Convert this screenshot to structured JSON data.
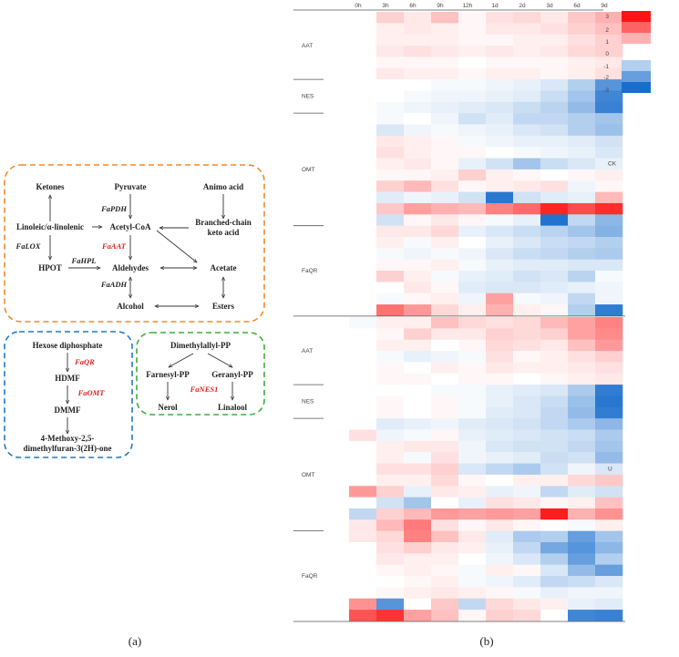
{
  "panel_a": {
    "caption": "(a)",
    "box_orange": {
      "ketones": "Ketones",
      "pyruvate": "Pyruvate",
      "amino_acid": "Animo acid",
      "linoleic": "Linoleic/α-linolenic",
      "acetyl_coa": "Acetyl-CoA",
      "branched_chain_1": "Branched-chain",
      "branched_chain_2": "keto acid",
      "hpot": "HPOT",
      "aldehydes": "Aldehydes",
      "acetate": "Acetate",
      "alcohol": "Alcohol",
      "esters": "Esters",
      "gene_pdh": "FaPDH",
      "gene_lox": "FaLOX",
      "gene_aat": "FaAAT",
      "gene_hpl": "FaHPL",
      "gene_adh": "FaADH"
    },
    "box_blue": {
      "hexose": "Hexose diphosphate",
      "hdmf": "HDMF",
      "dmmf": "DMMF",
      "product_1": "4-Methoxy-2,5-",
      "product_2": "dimethylfuran-3(2H)-one",
      "gene_qr": "FaQR",
      "gene_omt": "FaOMT"
    },
    "box_green": {
      "dimethylallyl": "Dimethylallyl-PP",
      "farnesyl": "Farnesyl-PP",
      "geranyl": "Geranyl-PP",
      "nerol": "Nerol",
      "linalool": "Linalool",
      "gene_nes1": "FaNES1"
    },
    "colors": {
      "orange": "#f08a2c",
      "blue": "#1f78c8",
      "green": "#3cae3c",
      "gene_red": "#e41f1f"
    }
  },
  "panel_b": {
    "caption": "(b)",
    "chart_data": {
      "type": "heatmap",
      "columns": [
        "0h",
        "3h",
        "6h",
        "9h",
        "12h",
        "1d",
        "2d",
        "3d",
        "6d",
        "9d"
      ],
      "panels": [
        {
          "name": "CK",
          "groups": [
            {
              "label": "AAT",
              "rows": 6
            },
            {
              "label": "NES",
              "rows": 3
            },
            {
              "label": "OMT",
              "rows": 10
            },
            {
              "label": "FaQR",
              "rows": 8
            }
          ],
          "values": [
            [
              0,
              0.6,
              0.3,
              0.8,
              0.1,
              0.4,
              0.5,
              0.3,
              0.7,
              1.0
            ],
            [
              0,
              0.2,
              0.3,
              0.2,
              0.1,
              0.3,
              0.3,
              0.4,
              0.6,
              0.8
            ],
            [
              0,
              0.2,
              0.2,
              0.2,
              0.1,
              0.1,
              0.2,
              0.2,
              0.4,
              0.6
            ],
            [
              0,
              0.3,
              0.4,
              0.3,
              0.2,
              0.3,
              0.2,
              0.3,
              0.5,
              0.6
            ],
            [
              0,
              0.1,
              0.1,
              0.1,
              0.0,
              0.1,
              0.1,
              0.1,
              0.2,
              0.3
            ],
            [
              0,
              0.3,
              0.2,
              0.2,
              0.1,
              0.2,
              0.2,
              0.1,
              0.2,
              0.4
            ],
            [
              0,
              0.0,
              0.0,
              -0.1,
              -0.1,
              -0.2,
              -0.3,
              -0.5,
              -1.0,
              -2.2
            ],
            [
              0,
              0.0,
              -0.1,
              -0.2,
              -0.2,
              -0.3,
              -0.4,
              -0.7,
              -1.2,
              -2.5
            ],
            [
              0,
              -0.1,
              -0.2,
              -0.3,
              -0.4,
              -0.5,
              -0.7,
              -0.9,
              -1.4,
              -2.6
            ],
            [
              0,
              -0.1,
              0.0,
              -0.2,
              -0.6,
              -0.4,
              -0.8,
              -0.8,
              -1.0,
              -1.2
            ],
            [
              0,
              -0.5,
              -0.2,
              -0.1,
              -0.2,
              -0.3,
              -0.5,
              -0.6,
              -1.0,
              -1.3
            ],
            [
              0,
              0.3,
              0.2,
              0.1,
              -0.1,
              -0.2,
              -0.3,
              -0.3,
              -0.4,
              -0.6
            ],
            [
              0,
              0.4,
              0.2,
              0.1,
              0.1,
              0.0,
              -0.1,
              -0.2,
              -0.3,
              -0.5
            ],
            [
              0,
              0.2,
              0.3,
              0.1,
              -0.3,
              -0.6,
              -1.2,
              -0.7,
              -0.5,
              -0.3
            ],
            [
              0,
              0.1,
              0.1,
              0.2,
              0.6,
              0.2,
              0.1,
              0.0,
              0.1,
              0.2
            ],
            [
              0,
              0.6,
              0.9,
              0.4,
              0.1,
              0.2,
              0.3,
              0.4,
              -0.2,
              0.1
            ],
            [
              0,
              -0.4,
              -0.2,
              -0.3,
              -0.6,
              -2.8,
              -0.6,
              -0.4,
              -0.3,
              0.9
            ],
            [
              0,
              0.7,
              1.2,
              1.0,
              0.9,
              1.6,
              1.9,
              2.8,
              2.3,
              2.7
            ],
            [
              0,
              -0.6,
              0.1,
              0.3,
              0.1,
              -0.1,
              -0.3,
              -2.9,
              -0.8,
              -1.5
            ],
            [
              0,
              0.3,
              0.3,
              0.5,
              -0.3,
              -0.5,
              -0.7,
              -0.9,
              -1.2,
              -1.6
            ],
            [
              0,
              0.2,
              -0.1,
              0.2,
              0.0,
              -0.3,
              -0.5,
              -0.7,
              -0.8,
              -1.0
            ],
            [
              0,
              -0.1,
              -0.2,
              -0.1,
              -0.2,
              -0.5,
              -0.7,
              -0.8,
              -1.0,
              -1.1
            ],
            [
              0,
              0.1,
              0.1,
              0.2,
              -0.1,
              -0.3,
              -0.4,
              -0.4,
              -0.5,
              -0.5
            ],
            [
              0,
              0.6,
              0.2,
              -0.1,
              -0.3,
              -0.4,
              -0.6,
              -0.5,
              -0.9,
              -0.1
            ],
            [
              0,
              0.0,
              0.3,
              0.1,
              -0.4,
              -0.5,
              -0.5,
              -0.4,
              -0.3,
              -0.2
            ],
            [
              0,
              -0.1,
              0.1,
              0.2,
              -0.2,
              1.2,
              -0.1,
              -0.2,
              -0.8,
              -0.2
            ],
            [
              0,
              1.8,
              1.3,
              0.5,
              0.2,
              1.0,
              0.2,
              0.1,
              -1.0,
              -2.7
            ]
          ]
        },
        {
          "name": "U",
          "groups": [
            {
              "label": "AAT",
              "rows": 6
            },
            {
              "label": "NES",
              "rows": 3
            },
            {
              "label": "OMT",
              "rows": 10
            },
            {
              "label": "FaQR",
              "rows": 8
            }
          ],
          "values": [
            [
              -0.1,
              0.2,
              0.2,
              0.8,
              0.5,
              0.4,
              0.5,
              0.9,
              1.2,
              1.6
            ],
            [
              0,
              0.1,
              0.6,
              0.3,
              0.3,
              0.6,
              0.5,
              0.6,
              1.2,
              1.5
            ],
            [
              0,
              0.2,
              0.2,
              0.0,
              0.1,
              0.5,
              0.4,
              0.3,
              0.8,
              1.3
            ],
            [
              0,
              -0.1,
              -0.3,
              -0.2,
              -0.1,
              0.4,
              0.1,
              0.2,
              0.4,
              0.6
            ],
            [
              0,
              0.1,
              0.0,
              0.2,
              0.1,
              0.3,
              0.2,
              0.2,
              0.3,
              0.4
            ],
            [
              0,
              0.1,
              0.1,
              0.0,
              0.1,
              0.1,
              0.0,
              0.1,
              0.2,
              0.3
            ],
            [
              0,
              0.0,
              0.0,
              -0.1,
              -0.1,
              -0.3,
              -0.4,
              -0.5,
              -1.1,
              -2.7
            ],
            [
              0,
              0.1,
              0.0,
              0.1,
              -0.1,
              -0.3,
              -0.5,
              -0.7,
              -1.3,
              -2.8
            ],
            [
              0,
              0.1,
              0.0,
              0.1,
              -0.1,
              -0.4,
              -0.5,
              -0.8,
              -1.4,
              -2.7
            ],
            [
              0,
              -0.4,
              -0.3,
              -0.2,
              -0.4,
              -0.5,
              -0.6,
              -0.8,
              -1.1,
              -1.5
            ],
            [
              0.4,
              -0.2,
              -0.1,
              0.1,
              -0.3,
              -0.4,
              -0.5,
              -0.6,
              -0.7,
              -1.1
            ],
            [
              0,
              0.2,
              0.3,
              0.3,
              -0.2,
              -0.5,
              -0.6,
              -0.6,
              -0.8,
              -1.2
            ],
            [
              0,
              0.2,
              -0.1,
              0.4,
              -0.2,
              -0.3,
              -0.4,
              -0.7,
              -0.6,
              -1.4
            ],
            [
              0,
              0.4,
              0.4,
              0.6,
              -0.5,
              -0.8,
              -1.1,
              -0.6,
              -0.2,
              -0.5
            ],
            [
              0,
              0.2,
              0.2,
              0.5,
              0.1,
              0.0,
              0.2,
              0.2,
              0.5,
              0.7
            ],
            [
              1.3,
              0.6,
              -0.3,
              0.3,
              0.2,
              -0.3,
              -0.2,
              -0.8,
              -0.4,
              -0.6
            ],
            [
              0,
              -0.6,
              -1.2,
              0.0,
              -0.3,
              0.4,
              0.3,
              0.1,
              0.2,
              0.8
            ],
            [
              -0.8,
              0.6,
              0.9,
              1.3,
              1.2,
              1.3,
              1.2,
              2.9,
              1.0,
              1.4
            ],
            [
              0.3,
              0.9,
              1.7,
              0.4,
              0.1,
              0.3,
              0.1,
              0.0,
              -0.1,
              0.2
            ],
            [
              0.3,
              0.5,
              1.6,
              0.8,
              0.3,
              -0.4,
              -1.1,
              -1.0,
              -2.0,
              -1.2
            ],
            [
              0,
              0.4,
              0.6,
              0.3,
              0.2,
              -0.3,
              -0.8,
              -1.8,
              -2.2,
              -1.5
            ],
            [
              0,
              0.3,
              0.2,
              0.2,
              0.0,
              -0.2,
              -0.5,
              -1.0,
              -2.0,
              -1.0
            ],
            [
              0,
              0.1,
              0.2,
              0.1,
              -0.1,
              0.2,
              0.1,
              -0.5,
              -1.4,
              -2.0
            ],
            [
              0,
              0.0,
              0.1,
              0.2,
              -0.1,
              -0.2,
              -0.4,
              -0.8,
              -0.7,
              -0.5
            ],
            [
              0,
              0.1,
              0.2,
              0.3,
              0.2,
              0.1,
              -0.1,
              -0.3,
              -0.2,
              -0.2
            ],
            [
              1.4,
              -2.2,
              0.0,
              0.7,
              -0.8,
              0.5,
              0.3,
              0.2,
              -0.3,
              -0.4
            ],
            [
              2.2,
              2.6,
              1.2,
              0.8,
              0.1,
              0.6,
              0.5,
              0.0,
              -2.5,
              -2.6
            ]
          ]
        }
      ],
      "legend": {
        "labels": [
          "3",
          "2",
          "1",
          "0",
          "-1",
          "-2",
          "-3"
        ],
        "values": [
          3,
          2,
          1,
          0,
          -1,
          -2,
          -3
        ]
      }
    }
  }
}
